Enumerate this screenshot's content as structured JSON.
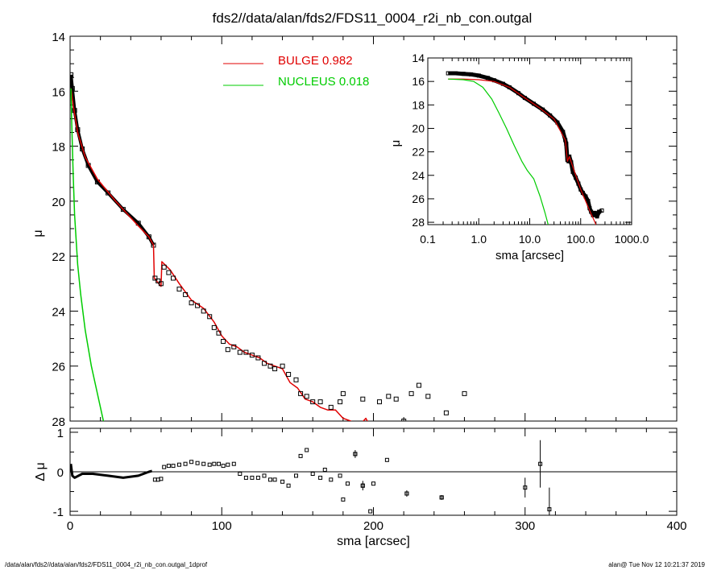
{
  "title": "fds2//data/alan/fds2/FDS11_0004_r2i_nb_con.outgal",
  "footer": {
    "path": "/data/alan/fds2//data/alan/fds2/FDS11_0004_r2i_nb_con.outgal_1dprof",
    "stamp": "alan@  Tue Nov 12 10:21:37 2019"
  },
  "colors": {
    "data": "#000000",
    "bulge": "#e00000",
    "nucleus": "#00cc00",
    "axes": "#000000"
  },
  "chart_data": [
    {
      "id": "main",
      "type": "scatter",
      "xlabel": "",
      "ylabel": "μ",
      "xlim": [
        0,
        400
      ],
      "ylim": [
        28,
        14
      ],
      "x_ticks": [
        0,
        100,
        200,
        300,
        400
      ],
      "y_ticks": [
        14,
        16,
        18,
        20,
        22,
        24,
        26,
        28
      ],
      "y_tick_labels": [
        "14",
        "16",
        "18",
        "20",
        "22",
        "24",
        "26",
        "28"
      ],
      "legend": {
        "placement": "top-center",
        "entries": [
          {
            "label": "BULGE  0.982",
            "color": "#e00000"
          },
          {
            "label": "NUCLEUS  0.018",
            "color": "#00cc00"
          }
        ]
      },
      "data_curve": [
        [
          0.6,
          15.4
        ],
        [
          1.5,
          15.9
        ],
        [
          3,
          16.7
        ],
        [
          5,
          17.4
        ],
        [
          8,
          18.1
        ],
        [
          12,
          18.7
        ],
        [
          18,
          19.3
        ],
        [
          25,
          19.7
        ],
        [
          35,
          20.3
        ],
        [
          45,
          20.8
        ],
        [
          52,
          21.3
        ],
        [
          55,
          21.6
        ]
      ],
      "data_points": [
        [
          56,
          22.8
        ],
        [
          58,
          22.9
        ],
        [
          60,
          23.0
        ],
        [
          62,
          22.4
        ],
        [
          65,
          22.6
        ],
        [
          68,
          22.8
        ],
        [
          72,
          23.2
        ],
        [
          76,
          23.4
        ],
        [
          80,
          23.7
        ],
        [
          84,
          23.8
        ],
        [
          88,
          24.0
        ],
        [
          92,
          24.2
        ],
        [
          95,
          24.6
        ],
        [
          98,
          24.8
        ],
        [
          101,
          25.1
        ],
        [
          104,
          25.4
        ],
        [
          108,
          25.3
        ],
        [
          112,
          25.5
        ],
        [
          116,
          25.5
        ],
        [
          120,
          25.6
        ],
        [
          124,
          25.7
        ],
        [
          128,
          25.9
        ],
        [
          132,
          26.0
        ],
        [
          135,
          26.1
        ],
        [
          140,
          26.0
        ],
        [
          144,
          26.3
        ],
        [
          149,
          26.5
        ],
        [
          152,
          27.0
        ],
        [
          156,
          27.1
        ],
        [
          160,
          27.3
        ],
        [
          165,
          27.3
        ],
        [
          172,
          27.5
        ],
        [
          178,
          27.3
        ],
        [
          180,
          27.0
        ],
        [
          193,
          27.2
        ],
        [
          204,
          27.3
        ],
        [
          210,
          27.1
        ],
        [
          215,
          27.2
        ],
        [
          220,
          28.0
        ],
        [
          225,
          27.0
        ],
        [
          230,
          26.7
        ],
        [
          236,
          27.1
        ],
        [
          248,
          27.7
        ],
        [
          260,
          27.0
        ]
      ],
      "series": [
        {
          "name": "BULGE  0.982",
          "color": "#e00000",
          "points": [
            [
              0.6,
              15.9
            ],
            [
              2,
              16.5
            ],
            [
              5,
              17.5
            ],
            [
              10,
              18.4
            ],
            [
              18,
              19.2
            ],
            [
              30,
              20.0
            ],
            [
              45,
              20.9
            ],
            [
              52,
              21.3
            ],
            [
              55,
              21.6
            ],
            [
              55.5,
              22.8
            ],
            [
              60,
              23.1
            ],
            [
              60.5,
              22.2
            ],
            [
              66,
              22.5
            ],
            [
              72,
              23.0
            ],
            [
              80,
              23.6
            ],
            [
              88,
              23.9
            ],
            [
              95,
              24.4
            ],
            [
              100,
              24.9
            ],
            [
              105,
              25.2
            ],
            [
              110,
              25.3
            ],
            [
              115,
              25.5
            ],
            [
              120,
              25.6
            ],
            [
              125,
              25.7
            ],
            [
              130,
              25.9
            ],
            [
              140,
              26.1
            ],
            [
              145,
              26.6
            ],
            [
              150,
              26.8
            ],
            [
              155,
              27.2
            ],
            [
              160,
              27.3
            ],
            [
              165,
              27.5
            ],
            [
              170,
              27.6
            ],
            [
              175,
              27.6
            ],
            [
              180,
              27.9
            ],
            [
              185,
              28.0
            ],
            [
              190,
              28.2
            ],
            [
              195,
              27.9
            ],
            [
              199,
              28.3
            ]
          ]
        },
        {
          "name": "NUCLEUS  0.018",
          "color": "#00cc00",
          "points": [
            [
              0.6,
              15.9
            ],
            [
              1,
              17.0
            ],
            [
              2,
              19.0
            ],
            [
              3,
              20.5
            ],
            [
              4,
              21.4
            ],
            [
              5,
              22.3
            ],
            [
              7,
              23.4
            ],
            [
              10,
              24.7
            ],
            [
              14,
              26.0
            ],
            [
              18,
              27.0
            ],
            [
              22,
              28.0
            ],
            [
              24,
              28.3
            ]
          ]
        }
      ]
    },
    {
      "id": "residual",
      "type": "scatter",
      "xlabel": "sma [arcsec]",
      "ylabel": "Δ μ",
      "xlim": [
        0,
        400
      ],
      "ylim": [
        -1.1,
        1.1
      ],
      "x_ticks": [
        0,
        100,
        200,
        300,
        400
      ],
      "y_ticks": [
        -1,
        0,
        1
      ],
      "y_tick_labels": [
        "-1",
        "0",
        "1"
      ],
      "zero_line": 0,
      "residual_curve": [
        [
          0.5,
          0.2
        ],
        [
          1.5,
          -0.1
        ],
        [
          3,
          -0.15
        ],
        [
          8,
          -0.05
        ],
        [
          15,
          -0.05
        ],
        [
          25,
          -0.1
        ],
        [
          35,
          -0.15
        ],
        [
          45,
          -0.1
        ],
        [
          52,
          0.0
        ],
        [
          54,
          0.02
        ]
      ],
      "residual_points": [
        [
          56,
          -0.2
        ],
        [
          58,
          -0.2
        ],
        [
          60,
          -0.18
        ],
        [
          62,
          0.12
        ],
        [
          65,
          0.15
        ],
        [
          68,
          0.15
        ],
        [
          72,
          0.18
        ],
        [
          76,
          0.2
        ],
        [
          80,
          0.25
        ],
        [
          84,
          0.22
        ],
        [
          88,
          0.2
        ],
        [
          92,
          0.18
        ],
        [
          95,
          0.2
        ],
        [
          98,
          0.2
        ],
        [
          101,
          0.15
        ],
        [
          104,
          0.18
        ],
        [
          108,
          0.2
        ],
        [
          112,
          -0.05
        ],
        [
          116,
          -0.15
        ],
        [
          120,
          -0.15
        ],
        [
          124,
          -0.15
        ],
        [
          128,
          -0.1
        ],
        [
          132,
          -0.2
        ],
        [
          135,
          -0.2
        ],
        [
          140,
          -0.25
        ],
        [
          144,
          -0.35
        ],
        [
          149,
          -0.1
        ],
        [
          152,
          0.4
        ],
        [
          156,
          0.55
        ],
        [
          160,
          -0.05
        ],
        [
          165,
          -0.15
        ],
        [
          168,
          0.05
        ],
        [
          172,
          -0.2
        ],
        [
          178,
          -0.1
        ],
        [
          180,
          -0.7
        ],
        [
          183,
          -0.3
        ],
        [
          188,
          0.45
        ],
        [
          193,
          -0.35
        ],
        [
          198,
          -1.0
        ],
        [
          200,
          -0.3
        ],
        [
          209,
          0.3
        ],
        [
          222,
          -0.55
        ],
        [
          245,
          -0.65
        ]
      ],
      "residual_errorbars": [
        [
          188,
          0.45,
          0.1
        ],
        [
          193,
          -0.35,
          0.12
        ],
        [
          222,
          -0.55,
          0.08
        ],
        [
          245,
          -0.65,
          0.06
        ],
        [
          300,
          -0.4,
          0.25
        ],
        [
          310,
          0.2,
          0.6
        ],
        [
          316,
          -0.95,
          0.55
        ]
      ]
    },
    {
      "id": "inset",
      "type": "line",
      "xlabel": "sma [arcsec]",
      "ylabel": "μ",
      "xscale": "log",
      "xlim": [
        0.1,
        1000
      ],
      "ylim": [
        28.2,
        14
      ],
      "x_ticks": [
        0.1,
        1,
        10,
        100,
        1000
      ],
      "x_tick_labels": [
        "0.1",
        "1.0",
        "10.0",
        "100.0",
        "1000.0"
      ],
      "y_ticks": [
        14,
        16,
        18,
        20,
        22,
        24,
        26,
        28
      ],
      "y_tick_labels": [
        "14",
        "16",
        "18",
        "20",
        "22",
        "24",
        "26",
        "28"
      ],
      "data_points": [
        [
          0.25,
          15.3
        ],
        [
          0.35,
          15.3
        ],
        [
          0.5,
          15.35
        ],
        [
          0.7,
          15.4
        ],
        [
          1,
          15.5
        ],
        [
          1.5,
          15.7
        ],
        [
          2,
          15.9
        ],
        [
          3,
          16.2
        ],
        [
          4,
          16.5
        ],
        [
          6,
          17.0
        ],
        [
          8,
          17.4
        ],
        [
          12,
          17.9
        ],
        [
          18,
          18.4
        ],
        [
          25,
          18.9
        ],
        [
          35,
          19.5
        ],
        [
          45,
          20.3
        ],
        [
          50,
          21.0
        ],
        [
          52,
          21.3
        ],
        [
          55,
          22.7
        ],
        [
          58,
          22.8
        ],
        [
          60,
          22.4
        ],
        [
          65,
          22.9
        ],
        [
          70,
          23.7
        ],
        [
          80,
          24.2
        ],
        [
          90,
          24.7
        ],
        [
          100,
          25.2
        ],
        [
          110,
          25.5
        ],
        [
          125,
          25.8
        ],
        [
          140,
          26.2
        ],
        [
          150,
          26.8
        ],
        [
          160,
          27.1
        ],
        [
          175,
          27.4
        ],
        [
          190,
          27.2
        ],
        [
          210,
          27.5
        ],
        [
          230,
          27.1
        ],
        [
          260,
          27.0
        ]
      ],
      "series": [
        {
          "name": "BULGE  0.982",
          "color": "#e00000",
          "points": [
            [
              0.25,
              15.8
            ],
            [
              0.5,
              15.8
            ],
            [
              1,
              15.85
            ],
            [
              2,
              16.0
            ],
            [
              4,
              16.5
            ],
            [
              8,
              17.4
            ],
            [
              15,
              18.2
            ],
            [
              30,
              19.2
            ],
            [
              50,
              21.0
            ],
            [
              55,
              22.8
            ],
            [
              60,
              22.4
            ],
            [
              80,
              24.0
            ],
            [
              100,
              25.2
            ],
            [
              150,
              27.0
            ],
            [
              200,
              28.2
            ]
          ]
        },
        {
          "name": "NUCLEUS  0.018",
          "color": "#00cc00",
          "points": [
            [
              0.25,
              15.8
            ],
            [
              0.5,
              15.85
            ],
            [
              0.8,
              16.0
            ],
            [
              1.2,
              16.5
            ],
            [
              1.8,
              17.5
            ],
            [
              2.5,
              18.7
            ],
            [
              3.5,
              20.0
            ],
            [
              5,
              21.5
            ],
            [
              7,
              22.8
            ],
            [
              9,
              23.6
            ],
            [
              12,
              24.3
            ],
            [
              16,
              25.8
            ],
            [
              20,
              27.2
            ],
            [
              23,
              28.2
            ]
          ]
        }
      ]
    }
  ]
}
